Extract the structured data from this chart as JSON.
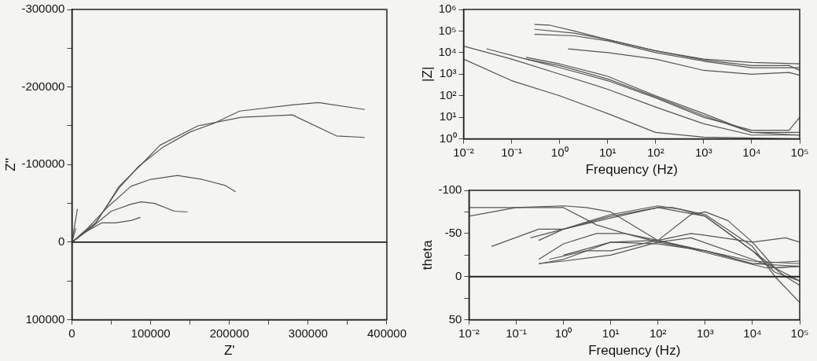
{
  "chart_data": [
    {
      "type": "line",
      "xlabel": "Z'",
      "ylabel": "Z''",
      "xlim": [
        0,
        400000
      ],
      "ylim": [
        100000,
        -300000
      ],
      "xticks": [
        0,
        {
          "value": 50000,
          "label": null
        },
        100000,
        {
          "value": 150000,
          "label": null
        },
        200000,
        {
          "value": 250000,
          "label": null
        },
        300000,
        {
          "value": 350000,
          "label": null
        },
        400000
      ],
      "yticks": [
        -300000,
        {
          "value": -250000,
          "label": null
        },
        -200000,
        {
          "value": -150000,
          "label": null
        },
        -100000,
        {
          "value": -50000,
          "label": null
        },
        0,
        {
          "value": 50000,
          "label": null
        },
        100000
      ],
      "grid": false,
      "legend": false,
      "ref_lines": [
        {
          "axis": "y",
          "value": 0,
          "color": "#222222"
        }
      ],
      "series": [
        {
          "color": "#555555",
          "x": [
            0,
            30000,
            60000,
            85000,
            115000,
            150000,
            180000,
            213000,
            280000,
            313000,
            372000
          ],
          "values": [
            0,
            -25000,
            -70000,
            -98000,
            -122000,
            -142000,
            -153000,
            -169000,
            -177000,
            -180000,
            -171000
          ]
        },
        {
          "color": "#555555",
          "x": [
            0,
            30000,
            60000,
            88000,
            112000,
            160000,
            215000,
            280000,
            336000,
            372000
          ],
          "values": [
            0,
            -24000,
            -72000,
            -100000,
            -125000,
            -150000,
            -161000,
            -164000,
            -137000,
            -135000
          ]
        },
        {
          "color": "#555555",
          "x": [
            0,
            20000,
            45000,
            75000,
            100000,
            134000,
            165000,
            195000,
            208000
          ],
          "values": [
            0,
            -18000,
            -45000,
            -72000,
            -81000,
            -86000,
            -81000,
            -73000,
            -65000
          ]
        },
        {
          "color": "#555555",
          "x": [
            0,
            20000,
            50000,
            75000,
            88000,
            105000,
            130000,
            147000
          ],
          "values": [
            0,
            -15000,
            -40000,
            -49000,
            -52000,
            -50000,
            -40000,
            -39000
          ]
        },
        {
          "color": "#555555",
          "x": [
            0,
            15000,
            38000,
            55000,
            75000,
            87000
          ],
          "values": [
            0,
            -12000,
            -25000,
            -25000,
            -28000,
            -32000
          ]
        },
        {
          "color": "#555555",
          "x": [
            0,
            7000
          ],
          "values": [
            0,
            -43000
          ]
        },
        {
          "color": "#555555",
          "x": [
            0,
            5000
          ],
          "values": [
            0,
            -18000
          ]
        }
      ]
    },
    {
      "type": "line",
      "xlabel": "Frequency (Hz)",
      "ylabel": "|Z|",
      "log": "xy",
      "xlim": [
        0.01,
        100000
      ],
      "ylim": [
        1,
        1000000
      ],
      "xticks": [
        {
          "value": 0.01,
          "label": "10⁻²"
        },
        {
          "value": 0.1,
          "label": "10⁻¹"
        },
        {
          "value": 1,
          "label": "10⁰"
        },
        {
          "value": 10,
          "label": "10¹"
        },
        {
          "value": 100,
          "label": "10²"
        },
        {
          "value": 1000,
          "label": "10³"
        },
        {
          "value": 10000,
          "label": "10⁴"
        },
        {
          "value": 100000,
          "label": "10⁵"
        }
      ],
      "yticks": [
        {
          "value": 1,
          "label": "10⁰"
        },
        {
          "value": 10,
          "label": "10¹"
        },
        {
          "value": 100,
          "label": "10²"
        },
        {
          "value": 1000,
          "label": "10³"
        },
        {
          "value": 10000,
          "label": "10⁴"
        },
        {
          "value": 100000,
          "label": "10⁵"
        },
        {
          "value": 1000000,
          "label": "10⁶"
        }
      ],
      "grid": false,
      "legend": false,
      "series": [
        {
          "color": "#555555",
          "x": [
            0.3,
            0.6,
            2,
            10,
            100,
            1000,
            10000,
            100000
          ],
          "values": [
            200000,
            190000,
            100000,
            40000,
            12000,
            5000,
            3500,
            3000
          ]
        },
        {
          "color": "#555555",
          "x": [
            0.3,
            2,
            10,
            100,
            1000,
            10000,
            60000,
            100000
          ],
          "values": [
            120000,
            80000,
            40000,
            12000,
            4500,
            2500,
            2500,
            1500
          ]
        },
        {
          "color": "#555555",
          "x": [
            0.3,
            2,
            10,
            100,
            1000,
            10000,
            100000
          ],
          "values": [
            70000,
            60000,
            35000,
            10000,
            4000,
            2000,
            2000
          ]
        },
        {
          "color": "#555555",
          "x": [
            1.5,
            10,
            100,
            1000,
            10000,
            60000,
            100000
          ],
          "values": [
            15000,
            10000,
            5000,
            1500,
            1000,
            1200,
            900
          ]
        },
        {
          "color": "#555555",
          "x": [
            0.01,
            0.1,
            1,
            10,
            100,
            1000,
            10000,
            100000
          ],
          "values": [
            20000,
            5000,
            1000,
            200,
            30,
            5,
            1.5,
            1.5
          ]
        },
        {
          "color": "#555555",
          "x": [
            0.01,
            0.1,
            1,
            10,
            100,
            1000,
            100000
          ],
          "values": [
            5000,
            500,
            100,
            15,
            2,
            1.2,
            1
          ]
        },
        {
          "color": "#555555",
          "x": [
            0.03,
            0.2,
            1,
            10,
            100,
            1000,
            10000,
            60000,
            100000
          ],
          "values": [
            15000,
            5000,
            2000,
            500,
            80,
            10,
            2.5,
            2.5,
            10
          ]
        },
        {
          "color": "#555555",
          "x": [
            0.2,
            1,
            10,
            100,
            1000,
            10000,
            100000
          ],
          "values": [
            6000,
            3000,
            800,
            100,
            15,
            2,
            2
          ]
        },
        {
          "color": "#555555",
          "x": [
            0.2,
            1,
            10,
            100,
            1000,
            10000,
            100000
          ],
          "values": [
            5000,
            2500,
            600,
            90,
            12,
            2,
            1.5
          ]
        }
      ]
    },
    {
      "type": "line",
      "xlabel": "Frequency (Hz)",
      "ylabel": "theta",
      "log": "x",
      "xlim": [
        0.01,
        100000
      ],
      "ylim": [
        50,
        -100
      ],
      "xticks": [
        {
          "value": 0.01,
          "label": "10⁻²"
        },
        {
          "value": 0.1,
          "label": "10⁻¹"
        },
        {
          "value": 1,
          "label": "10⁰"
        },
        {
          "value": 10,
          "label": "10¹"
        },
        {
          "value": 100,
          "label": "10²"
        },
        {
          "value": 1000,
          "label": "10³"
        },
        {
          "value": 10000,
          "label": "10⁴"
        },
        {
          "value": 100000,
          "label": "10⁵"
        }
      ],
      "yticks": [
        -100,
        {
          "value": -75,
          "label": null
        },
        -50,
        {
          "value": -25,
          "label": null
        },
        0,
        {
          "value": 25,
          "label": null
        },
        50
      ],
      "grid": false,
      "legend": false,
      "ref_lines": [
        {
          "axis": "y",
          "value": 0,
          "color": "#222222"
        }
      ],
      "series": [
        {
          "color": "#555555",
          "x": [
            0.01,
            0.1,
            1,
            3,
            10,
            100,
            1000,
            20000,
            100000
          ],
          "values": [
            -80,
            -80,
            -82,
            -80,
            -75,
            -42,
            -28,
            -10,
            -12
          ]
        },
        {
          "color": "#555555",
          "x": [
            0.01,
            0.1,
            1,
            5,
            20,
            100,
            1000,
            10000,
            100000
          ],
          "values": [
            -70,
            -80,
            -80,
            -60,
            -50,
            -42,
            -30,
            -15,
            -12
          ]
        },
        {
          "color": "#555555",
          "x": [
            0.03,
            0.3,
            1,
            10,
            100,
            200,
            1000,
            10000,
            30000,
            100000
          ],
          "values": [
            -35,
            -55,
            -55,
            -70,
            -80,
            -80,
            -72,
            -35,
            0,
            30
          ]
        },
        {
          "color": "#555555",
          "x": [
            0.2,
            1,
            10,
            100,
            300,
            1000,
            10000,
            50000,
            100000
          ],
          "values": [
            -45,
            -55,
            -72,
            -82,
            -78,
            -70,
            -30,
            0,
            10
          ]
        },
        {
          "color": "#555555",
          "x": [
            0.3,
            1,
            10,
            100,
            1000,
            10000,
            30000,
            100000
          ],
          "values": [
            -42,
            -55,
            -68,
            -80,
            -70,
            -30,
            -5,
            5
          ]
        },
        {
          "color": "#555555",
          "x": [
            0.3,
            1,
            5,
            20,
            100,
            1000,
            10000,
            100000
          ],
          "values": [
            -20,
            -38,
            -50,
            -50,
            -40,
            -30,
            -15,
            -18
          ]
        },
        {
          "color": "#555555",
          "x": [
            0.3,
            1,
            10,
            100,
            500,
            1000,
            10000,
            50000,
            100000
          ],
          "values": [
            -15,
            -20,
            -40,
            -42,
            -50,
            -48,
            -40,
            -45,
            -40
          ]
        },
        {
          "color": "#555555",
          "x": [
            0.3,
            1,
            10,
            100,
            500,
            10000,
            30000,
            100000
          ],
          "values": [
            -15,
            -18,
            -25,
            -40,
            -45,
            -20,
            -10,
            -12
          ]
        },
        {
          "color": "#555555",
          "x": [
            0.5,
            3,
            10,
            100,
            500,
            1000,
            3000,
            10000,
            30000,
            100000
          ],
          "values": [
            -20,
            -30,
            -30,
            -42,
            -72,
            -75,
            -65,
            -40,
            -10,
            5
          ]
        },
        {
          "color": "#555555",
          "x": [
            1,
            10,
            100,
            1000,
            10000,
            100000
          ],
          "values": [
            -25,
            -40,
            -38,
            -30,
            -18,
            -15
          ]
        }
      ]
    }
  ]
}
